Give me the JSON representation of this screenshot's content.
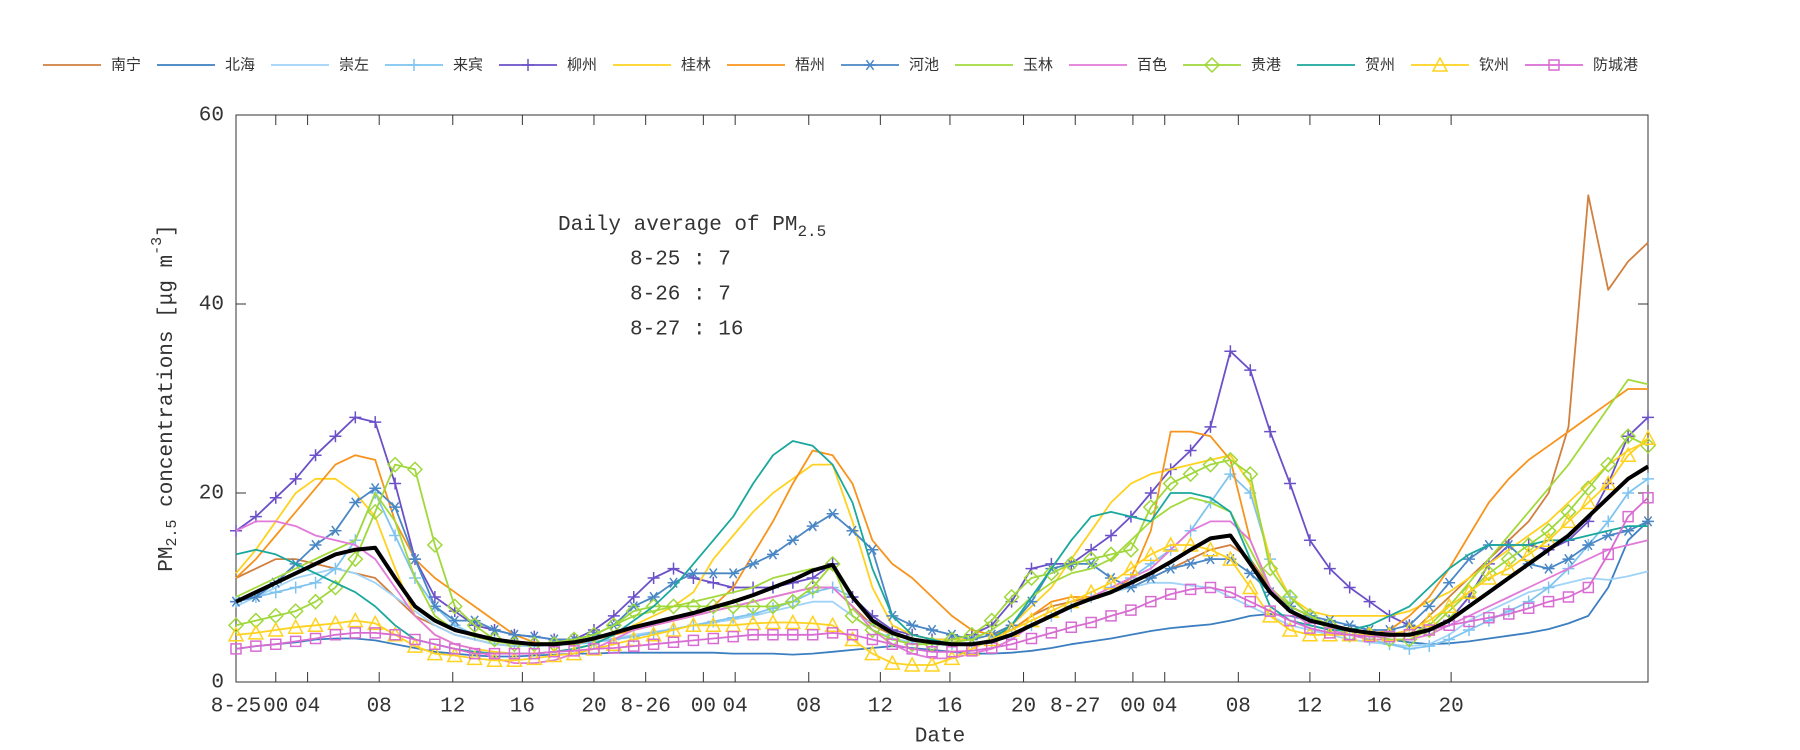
{
  "chart_data": {
    "type": "line",
    "annotation": {
      "title": "Daily average of PM",
      "title_sub": "2.5",
      "lines": [
        "8-25 : 7",
        "8-26 : 7",
        "8-27 : 16"
      ]
    },
    "xlabel": "Date",
    "ylabel": {
      "main": "PM",
      "sub": "2.5",
      "rest": " concentrations [μg m",
      "sup": "-3",
      "end": "]"
    },
    "xlim": [
      0,
      71
    ],
    "ylim": [
      0,
      60
    ],
    "yticks": [
      0,
      20,
      40,
      60
    ],
    "xticks": [
      {
        "value": 0,
        "label": "8-25"
      },
      {
        "value": 2,
        "label": "00"
      },
      {
        "value": 3.6,
        "label": "04"
      },
      {
        "value": 7.2,
        "label": "08"
      },
      {
        "value": 10.9,
        "label": "12"
      },
      {
        "value": 14.4,
        "label": "16"
      },
      {
        "value": 18,
        "label": "20"
      },
      {
        "value": 20.6,
        "label": "8-26"
      },
      {
        "value": 23.5,
        "label": "00"
      },
      {
        "value": 25.1,
        "label": "04"
      },
      {
        "value": 28.8,
        "label": "08"
      },
      {
        "value": 32.4,
        "label": "12"
      },
      {
        "value": 35.9,
        "label": "16"
      },
      {
        "value": 39.6,
        "label": "20"
      },
      {
        "value": 42.2,
        "label": "8-27"
      },
      {
        "value": 45.1,
        "label": "00"
      },
      {
        "value": 46.7,
        "label": "04"
      },
      {
        "value": 50.4,
        "label": "08"
      },
      {
        "value": 54,
        "label": "12"
      },
      {
        "value": 57.5,
        "label": "16"
      },
      {
        "value": 61.1,
        "label": "20"
      }
    ],
    "x": [
      0,
      1,
      2,
      3,
      4,
      5,
      6,
      7,
      8,
      9,
      10,
      11,
      12,
      13,
      14,
      15,
      16,
      17,
      18,
      19,
      20,
      21,
      22,
      23,
      24,
      25,
      26,
      27,
      28,
      29,
      30,
      31,
      32,
      33,
      34,
      35,
      36,
      37,
      38,
      39,
      40,
      41,
      42,
      43,
      44,
      45,
      46,
      47,
      48,
      49,
      50,
      51,
      52,
      53,
      54,
      55,
      56,
      57,
      58,
      59,
      60,
      61,
      62,
      63,
      64,
      65,
      66,
      67,
      68,
      69,
      70,
      71
    ],
    "legend": "top",
    "series": [
      {
        "name": "南宁",
        "color": "#d0803f",
        "marker": "none",
        "values": [
          11,
          12,
          13,
          13,
          12.5,
          12,
          11.5,
          11,
          9,
          7,
          6,
          5,
          4.5,
          4,
          3.8,
          3.8,
          4,
          4.2,
          4.5,
          5,
          5.5,
          6,
          6.5,
          7,
          7.5,
          8,
          8.5,
          9,
          9.5,
          10,
          10,
          8,
          6,
          5,
          4.5,
          4.2,
          4,
          4,
          4.5,
          5.5,
          7,
          8,
          8.5,
          9,
          9.5,
          10,
          11,
          12,
          13,
          14,
          14.5,
          13,
          10,
          8,
          7,
          6,
          5.5,
          5,
          5,
          5,
          7,
          9,
          11,
          13,
          15,
          17,
          20,
          27,
          51.5,
          41.5,
          44.5,
          46.5
        ]
      },
      {
        "name": "北海",
        "color": "#3c7fc0",
        "marker": "none",
        "values": [
          3.5,
          3.8,
          4,
          4.2,
          4.5,
          4.6,
          4.6,
          4.4,
          4,
          3.6,
          3.2,
          3,
          2.8,
          2.7,
          2.7,
          2.8,
          2.9,
          3,
          3,
          3.1,
          3.1,
          3.1,
          3.1,
          3.1,
          3.1,
          3,
          3,
          3,
          2.9,
          3,
          3.2,
          3.4,
          3.6,
          3.8,
          3.6,
          3.4,
          3.2,
          3,
          3,
          3.1,
          3.3,
          3.6,
          4,
          4.3,
          4.6,
          5,
          5.4,
          5.7,
          5.9,
          6.1,
          6.5,
          7,
          7.2,
          7,
          6.5,
          6,
          5.5,
          5,
          4.5,
          4.2,
          4,
          4.1,
          4.3,
          4.6,
          4.9,
          5.2,
          5.6,
          6.2,
          7,
          10,
          15,
          17
        ]
      },
      {
        "name": "崇左",
        "color": "#9fd3f7",
        "marker": "none",
        "values": [
          8,
          9,
          10,
          11,
          11.5,
          12,
          11.5,
          10.5,
          9,
          7.5,
          6,
          5,
          4.5,
          4,
          3.8,
          3.8,
          3.9,
          4,
          4.3,
          4.6,
          5,
          5.3,
          5.6,
          6,
          6.3,
          6.6,
          7,
          7.5,
          8,
          8.5,
          8.5,
          7,
          5.5,
          4.6,
          4.2,
          4,
          3.9,
          4,
          4.3,
          5,
          6,
          7,
          8,
          8.8,
          9.5,
          10,
          10.5,
          10.5,
          10.2,
          10,
          9,
          8,
          7,
          6,
          5.5,
          5,
          4.5,
          4.2,
          4,
          3.8,
          4,
          5,
          6.5,
          7.5,
          8.5,
          9.5,
          10,
          10.5,
          11,
          10.8,
          11.2,
          11.7
        ]
      },
      {
        "name": "来宾",
        "color": "#7fc4f0",
        "marker": "plus",
        "values": [
          8.5,
          9,
          9.5,
          10,
          10.5,
          12,
          15,
          20,
          15.5,
          11,
          8,
          6,
          5,
          4.5,
          4.2,
          4,
          3.9,
          4,
          4.2,
          4.5,
          4.8,
          5.2,
          5.6,
          6,
          6.4,
          6.8,
          7.2,
          7.8,
          8.5,
          9.5,
          10,
          9,
          6.5,
          5,
          4.5,
          4.2,
          4,
          4,
          4.3,
          5,
          6,
          7,
          8,
          9,
          10,
          11,
          12.5,
          14,
          16,
          19,
          22,
          20,
          13,
          9,
          7,
          6,
          5,
          4.5,
          4,
          3.5,
          3.8,
          4.5,
          5.5,
          6.5,
          7.5,
          8.5,
          10,
          12,
          14.5,
          17,
          20,
          21.5
        ]
      },
      {
        "name": "柳州",
        "color": "#6b50c8",
        "marker": "plus",
        "values": [
          16,
          17.5,
          19.5,
          21.5,
          24,
          26,
          28,
          27.5,
          21,
          13,
          9,
          7.5,
          6,
          5.5,
          5,
          4.8,
          4.5,
          4.5,
          5.5,
          7,
          9,
          11,
          12,
          11,
          10.5,
          10,
          10,
          10,
          10.5,
          11,
          12.5,
          9,
          7,
          5.5,
          5,
          4.5,
          4.5,
          5,
          6,
          8.5,
          12,
          12.5,
          12.5,
          14,
          15.5,
          17.5,
          20,
          22.5,
          24.5,
          27,
          35,
          33,
          26.5,
          21,
          15,
          12,
          10,
          8.5,
          7,
          6,
          5.5,
          6.5,
          9,
          12.5,
          14.5,
          14.5,
          14,
          15,
          17,
          21,
          26,
          28
        ]
      },
      {
        "name": "桂林",
        "color": "#ffd21f",
        "marker": "none",
        "values": [
          11.5,
          14,
          17,
          20,
          21.5,
          21.5,
          20,
          17.5,
          12,
          7,
          5,
          4,
          3.5,
          3.2,
          3,
          3,
          3.2,
          3.5,
          4,
          5,
          6,
          7,
          8,
          9.5,
          13,
          15.5,
          18,
          20,
          21.5,
          23,
          23,
          17,
          10,
          6,
          5,
          4.5,
          4.5,
          4.5,
          5,
          6,
          8,
          10,
          13,
          16,
          19,
          21,
          22,
          22.5,
          23,
          23.5,
          24,
          21,
          13,
          9,
          7.5,
          7,
          7,
          7,
          7,
          7.5,
          8.5,
          9.5,
          11,
          12.5,
          14,
          15.5,
          17,
          19,
          21,
          23,
          24.5,
          25.5
        ]
      },
      {
        "name": "梧州",
        "color": "#f7941d",
        "marker": "none",
        "values": [
          11,
          13,
          15.5,
          18,
          20.5,
          23,
          24,
          23.5,
          17,
          13,
          11,
          9.5,
          8,
          6.5,
          5,
          4.2,
          4,
          4,
          4.5,
          5,
          5.5,
          6,
          6.5,
          7,
          8,
          10,
          13.5,
          17,
          21,
          24.5,
          24,
          21,
          15,
          12.5,
          11,
          9,
          7,
          5.5,
          5,
          5.5,
          7,
          8.5,
          9,
          9,
          9.5,
          11,
          16,
          26.5,
          26.5,
          26,
          23.5,
          15,
          10,
          8,
          7,
          6,
          5.5,
          5,
          5.5,
          7,
          9,
          12,
          15.5,
          19,
          21.5,
          23.5,
          25,
          26.5,
          28,
          29.5,
          31,
          31
        ]
      },
      {
        "name": "河池",
        "color": "#4a87c5",
        "marker": "star",
        "values": [
          8.5,
          9,
          10.5,
          12.5,
          14.5,
          16,
          19,
          20.5,
          18.5,
          13,
          8,
          6.5,
          6.5,
          5.5,
          5,
          4.8,
          4.5,
          4.5,
          5,
          6,
          8,
          9,
          10.5,
          11.5,
          11.5,
          11.5,
          12.5,
          13.5,
          15,
          16.5,
          17.8,
          16,
          14,
          7,
          6,
          5.5,
          5,
          4.5,
          5,
          6,
          8.5,
          12,
          12.5,
          12.5,
          11,
          10,
          11,
          12,
          12.5,
          13,
          13,
          11.5,
          9.5,
          8,
          7,
          6.5,
          6,
          5.5,
          5.5,
          6,
          8,
          10.5,
          13,
          14.5,
          14.5,
          12.5,
          12,
          13,
          14.5,
          15.5,
          16,
          17
        ]
      },
      {
        "name": "玉林",
        "color": "#a3d93b",
        "marker": "none",
        "values": [
          9,
          10,
          11,
          12,
          13,
          14,
          15,
          20,
          17,
          11,
          7,
          5.5,
          4.8,
          4.3,
          4,
          4,
          4.2,
          4.5,
          5,
          6,
          7,
          7.5,
          8,
          8.5,
          9,
          9.5,
          10,
          11,
          11.5,
          12,
          12,
          9,
          6.5,
          5,
          4.5,
          4.2,
          4.2,
          4.5,
          5.5,
          7,
          9,
          10.5,
          11.5,
          12,
          13,
          15,
          17,
          18.5,
          19.5,
          19,
          18,
          14,
          10,
          8,
          7,
          6,
          5.5,
          5.2,
          5,
          5,
          6,
          8,
          10.5,
          13,
          15.5,
          18,
          20.5,
          23,
          26,
          29,
          32,
          31.5
        ]
      },
      {
        "name": "百色",
        "color": "#e27ad9",
        "marker": "none",
        "values": [
          16,
          17,
          17,
          16.5,
          15.5,
          15,
          14.5,
          13,
          10,
          7,
          5,
          4,
          3.5,
          2.5,
          2,
          2,
          2.3,
          3,
          3.5,
          4.5,
          5.5,
          6,
          6.5,
          7,
          7.5,
          8,
          8.5,
          9,
          9.5,
          10,
          10,
          8,
          5.5,
          4,
          3,
          2.5,
          2.5,
          3,
          3.5,
          4.5,
          6,
          7,
          8,
          9,
          10,
          11,
          12,
          14,
          16,
          17,
          17,
          15,
          10,
          7.5,
          6,
          5.5,
          5,
          4.5,
          4.5,
          4.5,
          5,
          6,
          7,
          8,
          9,
          10,
          11,
          12,
          13,
          14,
          14.5,
          15
        ]
      },
      {
        "name": "贵港",
        "color": "#9fd83a",
        "marker": "diamond",
        "values": [
          6,
          6.5,
          7,
          7.5,
          8.5,
          10,
          13,
          18,
          23,
          22.5,
          14.5,
          8,
          6,
          4.5,
          4,
          4,
          4,
          4.5,
          5,
          6,
          7.5,
          8,
          8,
          8,
          8,
          8,
          8,
          8,
          8.5,
          10,
          12.5,
          7,
          5.5,
          4.5,
          4,
          4,
          4.5,
          5,
          6.5,
          9,
          11,
          11.5,
          12.5,
          13,
          13.5,
          14,
          18.5,
          21,
          22,
          23,
          23.5,
          22,
          12,
          9,
          7,
          6,
          5,
          5,
          4.5,
          4.5,
          5.5,
          7.5,
          9.5,
          11.5,
          13,
          14.5,
          16,
          18,
          20.5,
          23,
          26,
          25
        ]
      },
      {
        "name": "贺州",
        "color": "#1aa89d",
        "marker": "none",
        "values": [
          13.5,
          14,
          13.5,
          12.5,
          11.5,
          10.5,
          9.5,
          8,
          6,
          4.5,
          4,
          3.5,
          3.2,
          3,
          3,
          3,
          3.2,
          3.5,
          4,
          5,
          6.5,
          8,
          10,
          12.5,
          15,
          17.5,
          21,
          24,
          25.5,
          25,
          23,
          19,
          12,
          7,
          5,
          4.5,
          4,
          4,
          4.5,
          6,
          9,
          12,
          15,
          17.5,
          18,
          17.5,
          17,
          20,
          20,
          19.5,
          18,
          13,
          8,
          6.5,
          6,
          5.5,
          5.5,
          6,
          7,
          8,
          10,
          12,
          13.5,
          14.5,
          14.5,
          14.5,
          15,
          15,
          15.5,
          16,
          16.5,
          16.5
        ]
      },
      {
        "name": "钦州",
        "color": "#ffd21f",
        "marker": "triangle",
        "values": [
          5,
          5.2,
          5.5,
          5.8,
          6,
          6.2,
          6.5,
          6.2,
          5,
          3.8,
          3,
          2.8,
          2.5,
          2.3,
          2.3,
          2.5,
          2.8,
          3,
          3.5,
          4,
          4.5,
          5,
          5.5,
          6,
          6,
          6,
          6.2,
          6.3,
          6.3,
          6.2,
          6,
          4.5,
          3,
          2,
          1.8,
          1.8,
          2.5,
          3.5,
          4.5,
          5.5,
          6.5,
          7.5,
          8.5,
          9.5,
          10.5,
          12,
          13.5,
          14.5,
          14.5,
          14,
          13,
          10,
          7,
          5.5,
          5,
          5,
          5,
          5,
          5,
          5.5,
          6.5,
          8,
          9.5,
          11,
          12,
          13.5,
          15,
          17,
          19,
          21,
          24,
          25.8
        ]
      },
      {
        "name": "防城港",
        "color": "#d86cd2",
        "marker": "square",
        "values": [
          3.5,
          3.8,
          4,
          4.3,
          4.6,
          5,
          5.2,
          5.2,
          5,
          4.5,
          4,
          3.5,
          3,
          3,
          3,
          3,
          3.2,
          3.3,
          3.5,
          3.6,
          3.8,
          4,
          4.2,
          4.4,
          4.6,
          4.8,
          5,
          5,
          5,
          5,
          5.2,
          5,
          4.5,
          4,
          3.5,
          3.2,
          3.2,
          3.3,
          3.6,
          4,
          4.6,
          5.2,
          5.8,
          6.3,
          7,
          7.6,
          8.5,
          9.3,
          9.8,
          10,
          9.5,
          8.5,
          7.5,
          6.5,
          5.7,
          5.2,
          5,
          4.8,
          4.8,
          5,
          5.5,
          6,
          6.4,
          6.8,
          7.2,
          7.8,
          8.5,
          9,
          10,
          13.5,
          17.5,
          19.5
        ]
      }
    ],
    "average": {
      "color": "#000000",
      "values": [
        8.5,
        9.5,
        10.5,
        11.5,
        12.5,
        13.5,
        14,
        14.2,
        11,
        8,
        6.5,
        5.5,
        5,
        4.5,
        4.2,
        4,
        4,
        4.2,
        4.6,
        5.2,
        5.8,
        6.3,
        6.8,
        7.3,
        7.9,
        8.5,
        9.2,
        10,
        10.8,
        11.8,
        12.4,
        9,
        6.5,
        5.2,
        4.5,
        4.2,
        4,
        4,
        4.3,
        5,
        6,
        7,
        8,
        8.8,
        9.5,
        10.5,
        11.5,
        12.7,
        14,
        15.2,
        15.5,
        12.5,
        9.5,
        7.5,
        6.5,
        6,
        5.5,
        5.2,
        5,
        5,
        5.5,
        6.5,
        8,
        9.5,
        11,
        12.5,
        14,
        15.5,
        17.5,
        19.5,
        21.5,
        22.8
      ]
    }
  }
}
